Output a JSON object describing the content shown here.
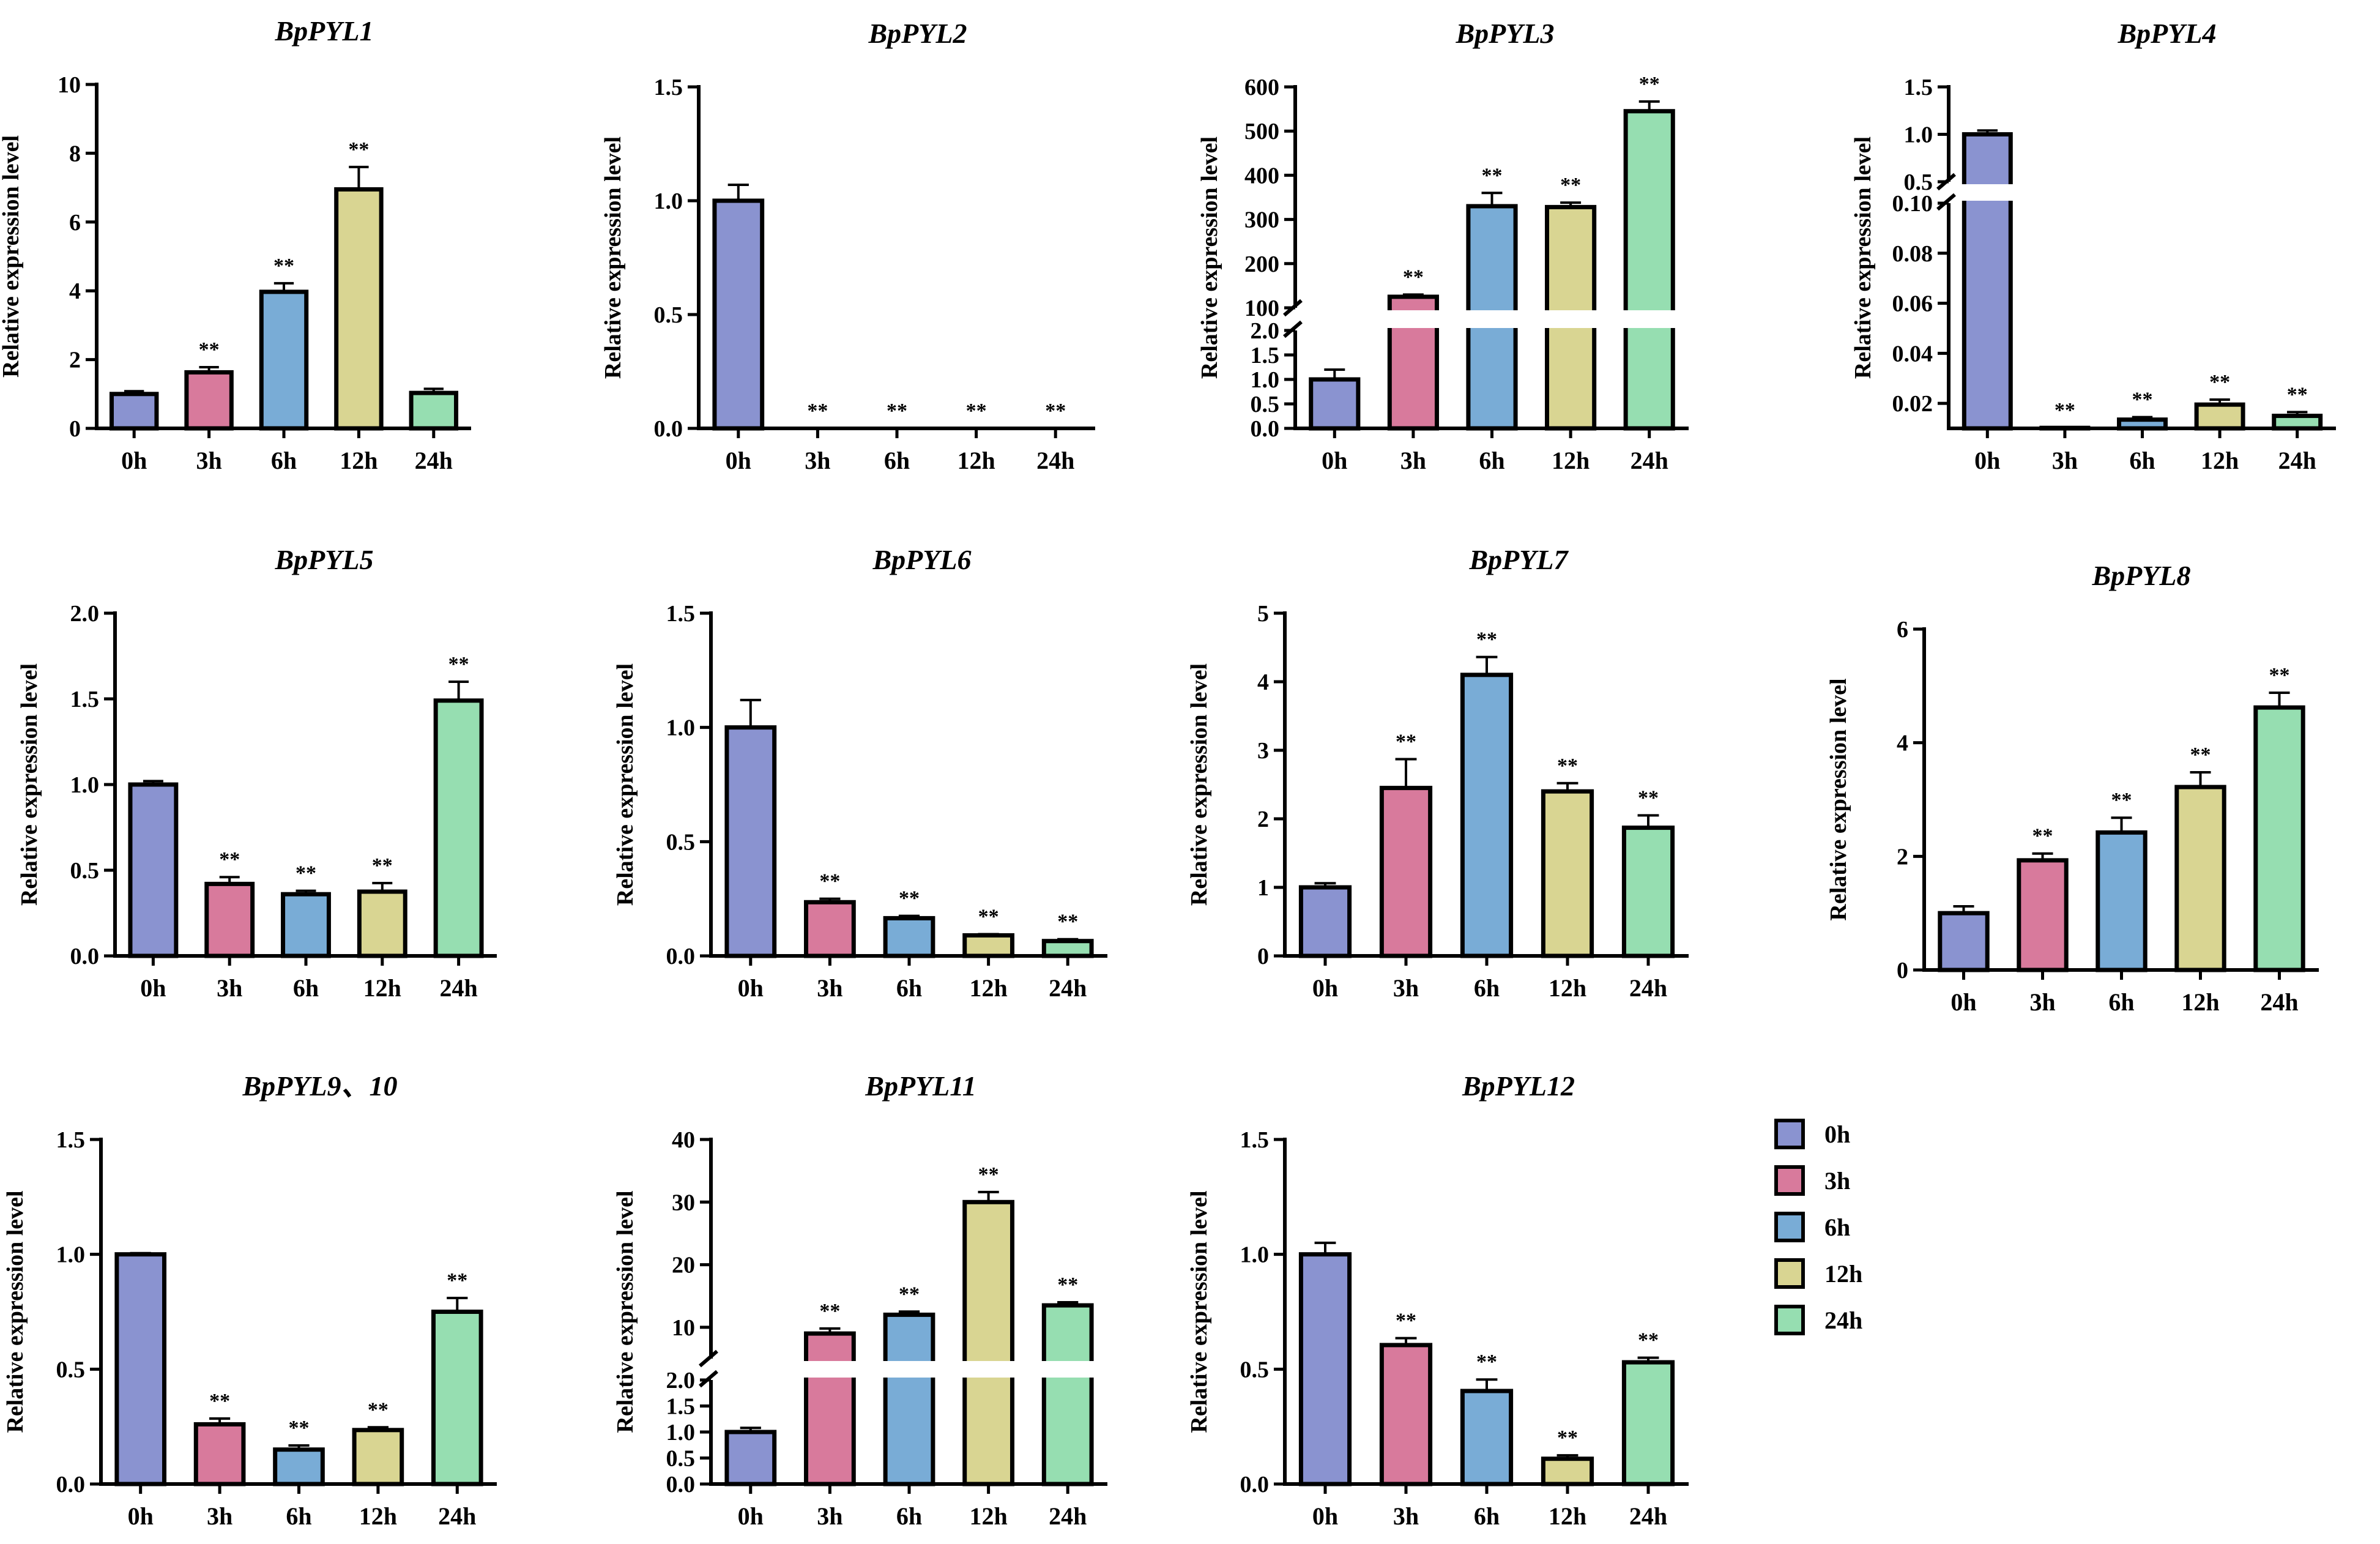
{
  "legend": {
    "entries": [
      "0h",
      "3h",
      "6h",
      "12h",
      "24h"
    ],
    "colors": [
      "#8a93d0",
      "#d87a9c",
      "#79acd6",
      "#d9d592",
      "#96deb1"
    ]
  },
  "chart_data": [
    {
      "type": "bar",
      "title": "BpPYL1",
      "ylabel": "Relative expression level",
      "categories": [
        "0h",
        "3h",
        "6h",
        "12h",
        "24h"
      ],
      "values": [
        1.0,
        1.63,
        3.97,
        6.95,
        1.03
      ],
      "errors": [
        0.08,
        0.15,
        0.25,
        0.65,
        0.12
      ],
      "significance": [
        "",
        "**",
        "**",
        "**",
        ""
      ],
      "ylim": [
        0,
        10
      ],
      "yticks": [
        0,
        2,
        4,
        6,
        8,
        10
      ],
      "ytick_labels": [
        "0",
        "2",
        "4",
        "6",
        "8",
        "10"
      ]
    },
    {
      "type": "bar",
      "title": "BpPYL2",
      "ylabel": "Relative expression level",
      "categories": [
        "0h",
        "3h",
        "6h",
        "12h",
        "24h"
      ],
      "values": [
        1.0,
        0.0,
        0.0,
        0.0,
        0.0
      ],
      "errors": [
        0.07,
        0,
        0,
        0,
        0
      ],
      "significance": [
        "",
        "**",
        "**",
        "**",
        "**"
      ],
      "ylim": [
        0,
        1.5
      ],
      "yticks": [
        0,
        0.5,
        1.0,
        1.5
      ],
      "ytick_labels": [
        "0.0",
        "0.5",
        "1.0",
        "1.5"
      ]
    },
    {
      "type": "bar",
      "title": "BpPYL3",
      "ylabel": "Relative expression level",
      "categories": [
        "0h",
        "3h",
        "6h",
        "12h",
        "24h"
      ],
      "values": [
        1.0,
        125,
        330,
        328,
        545
      ],
      "errors": [
        0.2,
        5,
        30,
        10,
        22
      ],
      "significance": [
        "",
        "**",
        "**",
        "**",
        "**"
      ],
      "broken_axis": {
        "lower": [
          0,
          2.0
        ],
        "upper": [
          100,
          600
        ]
      },
      "yticks": [
        0,
        0.5,
        1.0,
        1.5,
        2.0,
        100,
        200,
        300,
        400,
        500,
        600
      ],
      "ytick_labels": [
        "0.0",
        "0.5",
        "1.0",
        "1.5",
        "2.0",
        "100",
        "200",
        "300",
        "400",
        "500",
        "600"
      ]
    },
    {
      "type": "bar",
      "title": "BpPYL4",
      "ylabel": "Relative expression level",
      "categories": [
        "0h",
        "3h",
        "6h",
        "12h",
        "24h"
      ],
      "values": [
        1.0,
        0.0102,
        0.0135,
        0.0195,
        0.015
      ],
      "errors": [
        0.04,
        0,
        0.001,
        0.002,
        0.0015
      ],
      "significance": [
        "",
        "**",
        "**",
        "**",
        "**"
      ],
      "broken_axis": {
        "lower": [
          0.01,
          0.1
        ],
        "upper": [
          0.5,
          1.5
        ]
      },
      "yticks": [
        0.02,
        0.04,
        0.06,
        0.08,
        0.1,
        0.5,
        1.0,
        1.5
      ],
      "ytick_labels": [
        "0.02",
        "0.04",
        "0.06",
        "0.08",
        "0.10",
        "0.5",
        "1.0",
        "1.5"
      ]
    },
    {
      "type": "bar",
      "title": "BpPYL5",
      "ylabel": "Relative expression level",
      "categories": [
        "0h",
        "3h",
        "6h",
        "12h",
        "24h"
      ],
      "values": [
        1.0,
        0.42,
        0.36,
        0.375,
        1.49
      ],
      "errors": [
        0.02,
        0.04,
        0.02,
        0.05,
        0.11
      ],
      "significance": [
        "",
        "**",
        "**",
        "**",
        "**"
      ],
      "ylim": [
        0,
        2.0
      ],
      "yticks": [
        0,
        0.5,
        1.0,
        1.5,
        2.0
      ],
      "ytick_labels": [
        "0.0",
        "0.5",
        "1.0",
        "1.5",
        "2.0"
      ]
    },
    {
      "type": "bar",
      "title": "BpPYL6",
      "ylabel": "Relative expression level",
      "categories": [
        "0h",
        "3h",
        "6h",
        "12h",
        "24h"
      ],
      "values": [
        1.0,
        0.235,
        0.165,
        0.09,
        0.065
      ],
      "errors": [
        0.12,
        0.015,
        0.01,
        0.005,
        0.008
      ],
      "significance": [
        "",
        "**",
        "**",
        "**",
        "**"
      ],
      "ylim": [
        0,
        1.5
      ],
      "yticks": [
        0,
        0.5,
        1.0,
        1.5
      ],
      "ytick_labels": [
        "0.0",
        "0.5",
        "1.0",
        "1.5"
      ]
    },
    {
      "type": "bar",
      "title": "BpPYL7",
      "ylabel": "Relative expression level",
      "categories": [
        "0h",
        "3h",
        "6h",
        "12h",
        "24h"
      ],
      "values": [
        1.0,
        2.45,
        4.1,
        2.4,
        1.87
      ],
      "errors": [
        0.06,
        0.42,
        0.26,
        0.12,
        0.18
      ],
      "significance": [
        "",
        "**",
        "**",
        "**",
        "**"
      ],
      "ylim": [
        0,
        5
      ],
      "yticks": [
        0,
        1,
        2,
        3,
        4,
        5
      ],
      "ytick_labels": [
        "0",
        "1",
        "2",
        "3",
        "4",
        "5"
      ]
    },
    {
      "type": "bar",
      "title": "BpPYL8",
      "ylabel": "Relative expression level",
      "categories": [
        "0h",
        "3h",
        "6h",
        "12h",
        "24h"
      ],
      "values": [
        1.0,
        1.93,
        2.42,
        3.22,
        4.62
      ],
      "errors": [
        0.12,
        0.12,
        0.26,
        0.26,
        0.26
      ],
      "significance": [
        "",
        "**",
        "**",
        "**",
        "**"
      ],
      "ylim": [
        0,
        6
      ],
      "yticks": [
        0,
        2,
        4,
        6
      ],
      "ytick_labels": [
        "0",
        "2",
        "4",
        "6"
      ]
    },
    {
      "type": "bar",
      "title": "BpPYL9、10",
      "ylabel": "Relative expression level",
      "categories": [
        "0h",
        "3h",
        "6h",
        "12h",
        "24h"
      ],
      "values": [
        1.0,
        0.26,
        0.15,
        0.235,
        0.75
      ],
      "errors": [
        0.005,
        0.025,
        0.018,
        0.012,
        0.06
      ],
      "significance": [
        "",
        "**",
        "**",
        "**",
        "**"
      ],
      "ylim": [
        0,
        1.5
      ],
      "yticks": [
        0,
        0.5,
        1.0,
        1.5
      ],
      "ytick_labels": [
        "0.0",
        "0.5",
        "1.0",
        "1.5"
      ]
    },
    {
      "type": "bar",
      "title": "BpPYL11",
      "ylabel": "Relative expression level",
      "categories": [
        "0h",
        "3h",
        "6h",
        "12h",
        "24h"
      ],
      "values": [
        1.0,
        9.0,
        12.0,
        30.0,
        13.5
      ],
      "errors": [
        0.08,
        0.8,
        0.5,
        1.6,
        0.5
      ],
      "significance": [
        "",
        "**",
        "**",
        "**",
        "**"
      ],
      "broken_axis": {
        "lower": [
          0,
          2.0
        ],
        "upper": [
          5,
          40
        ]
      },
      "yticks": [
        0,
        0.5,
        1.0,
        1.5,
        2.0,
        10,
        20,
        30,
        40
      ],
      "ytick_labels": [
        "0.0",
        "0.5",
        "1.0",
        "1.5",
        "2.0",
        "10",
        "20",
        "30",
        "40"
      ]
    },
    {
      "type": "bar",
      "title": "BpPYL12",
      "ylabel": "Relative expression level",
      "categories": [
        "0h",
        "3h",
        "6h",
        "12h",
        "24h"
      ],
      "values": [
        1.0,
        0.605,
        0.405,
        0.11,
        0.53
      ],
      "errors": [
        0.05,
        0.03,
        0.05,
        0.015,
        0.02
      ],
      "significance": [
        "",
        "**",
        "**",
        "**",
        "**"
      ],
      "ylim": [
        0,
        1.5
      ],
      "yticks": [
        0,
        0.5,
        1.0,
        1.5
      ],
      "ytick_labels": [
        "0.0",
        "0.5",
        "1.0",
        "1.5"
      ]
    }
  ]
}
